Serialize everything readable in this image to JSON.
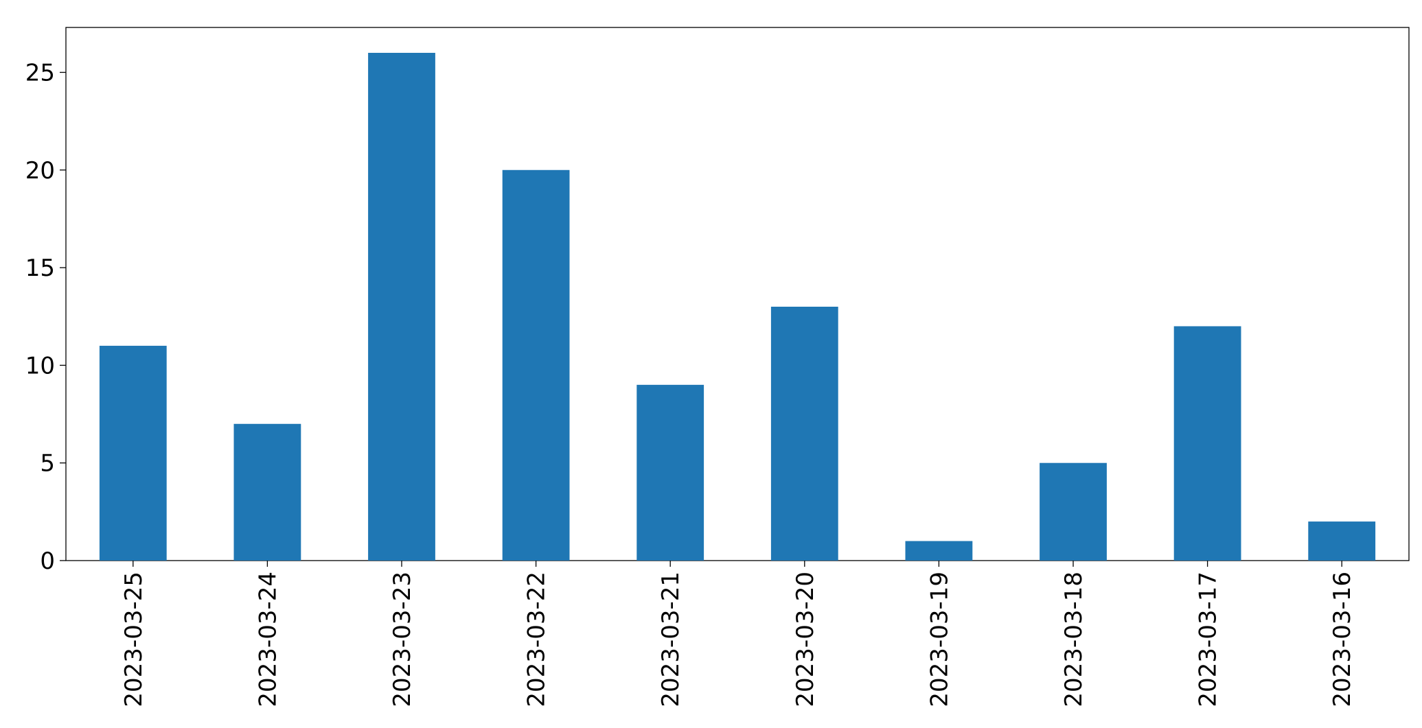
{
  "chart_data": {
    "type": "bar",
    "categories": [
      "2023-03-25",
      "2023-03-24",
      "2023-03-23",
      "2023-03-22",
      "2023-03-21",
      "2023-03-20",
      "2023-03-19",
      "2023-03-18",
      "2023-03-17",
      "2023-03-16"
    ],
    "values": [
      11,
      7,
      26,
      20,
      9,
      13,
      1,
      5,
      12,
      2
    ],
    "color": "#1f77b4",
    "ylim": [
      0,
      27.3
    ],
    "yticks": [
      0,
      5,
      10,
      15,
      20,
      25
    ],
    "grid": false
  }
}
